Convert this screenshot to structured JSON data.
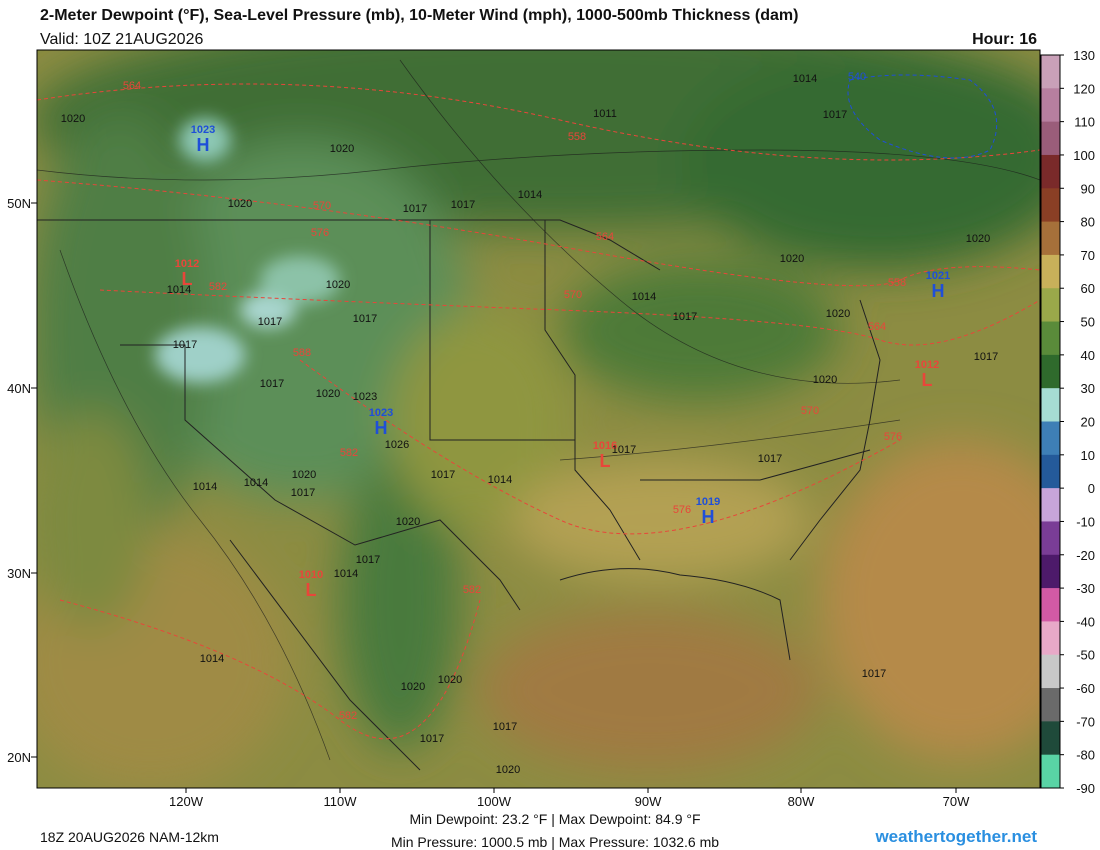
{
  "header": {
    "title": "2-Meter Dewpoint (°F), Sea-Level Pressure (mb), 10-Meter Wind (mph), 1000-500mb Thickness (dam)",
    "valid": "Valid: 10Z 21AUG2026",
    "hour": "Hour: 16"
  },
  "colorbar": {
    "ticks": [
      130,
      120,
      110,
      100,
      90,
      80,
      70,
      60,
      50,
      40,
      30,
      20,
      10,
      0,
      -10,
      -20,
      -30,
      -40,
      -50,
      -60,
      -70,
      -80,
      -90
    ]
  },
  "axes": {
    "lat_labels": [
      "50N",
      "40N",
      "30N",
      "20N"
    ],
    "lon_labels": [
      "120W",
      "110W",
      "100W",
      "90W",
      "80W",
      "70W"
    ]
  },
  "highs": [
    {
      "symbol": "H",
      "value": "1023"
    },
    {
      "symbol": "H",
      "value": "1023"
    },
    {
      "symbol": "H",
      "value": "1019"
    },
    {
      "symbol": "H",
      "value": "1021"
    }
  ],
  "lows": [
    {
      "symbol": "L",
      "value": "1012"
    },
    {
      "symbol": "L",
      "value": "1016"
    },
    {
      "symbol": "L",
      "value": "1010"
    },
    {
      "symbol": "L",
      "value": "1012"
    }
  ],
  "isobar_labels": [
    "1014",
    "1011",
    "1017",
    "1020",
    "1020",
    "1020",
    "1017",
    "1017",
    "1014",
    "1020",
    "1020",
    "1014",
    "1020",
    "1017",
    "1017",
    "1014",
    "1017",
    "1017",
    "1020",
    "1017",
    "1017",
    "1020",
    "1023",
    "1020",
    "1026",
    "1017",
    "1017",
    "1020",
    "1014",
    "1017",
    "1017",
    "1014",
    "1014",
    "1020",
    "1017",
    "1014",
    "1014",
    "1020",
    "1020",
    "1017",
    "1017",
    "1020",
    "1017"
  ],
  "thickness_labels": [
    "564",
    "558",
    "570",
    "576",
    "564",
    "570",
    "582",
    "588",
    "558",
    "564",
    "570",
    "576",
    "582",
    "582",
    "582",
    "576"
  ],
  "thickness_labels_cold": [
    "540"
  ],
  "footer": {
    "run": "18Z 20AUG2026 NAM-12km",
    "dewpoint_range": "Min Dewpoint:  23.2 °F | Max Dewpoint:  84.9 °F",
    "pressure_range": "Min Pressure: 1000.5 mb | Max Pressure: 1032.6 mb",
    "site": "weathertogether.net"
  }
}
